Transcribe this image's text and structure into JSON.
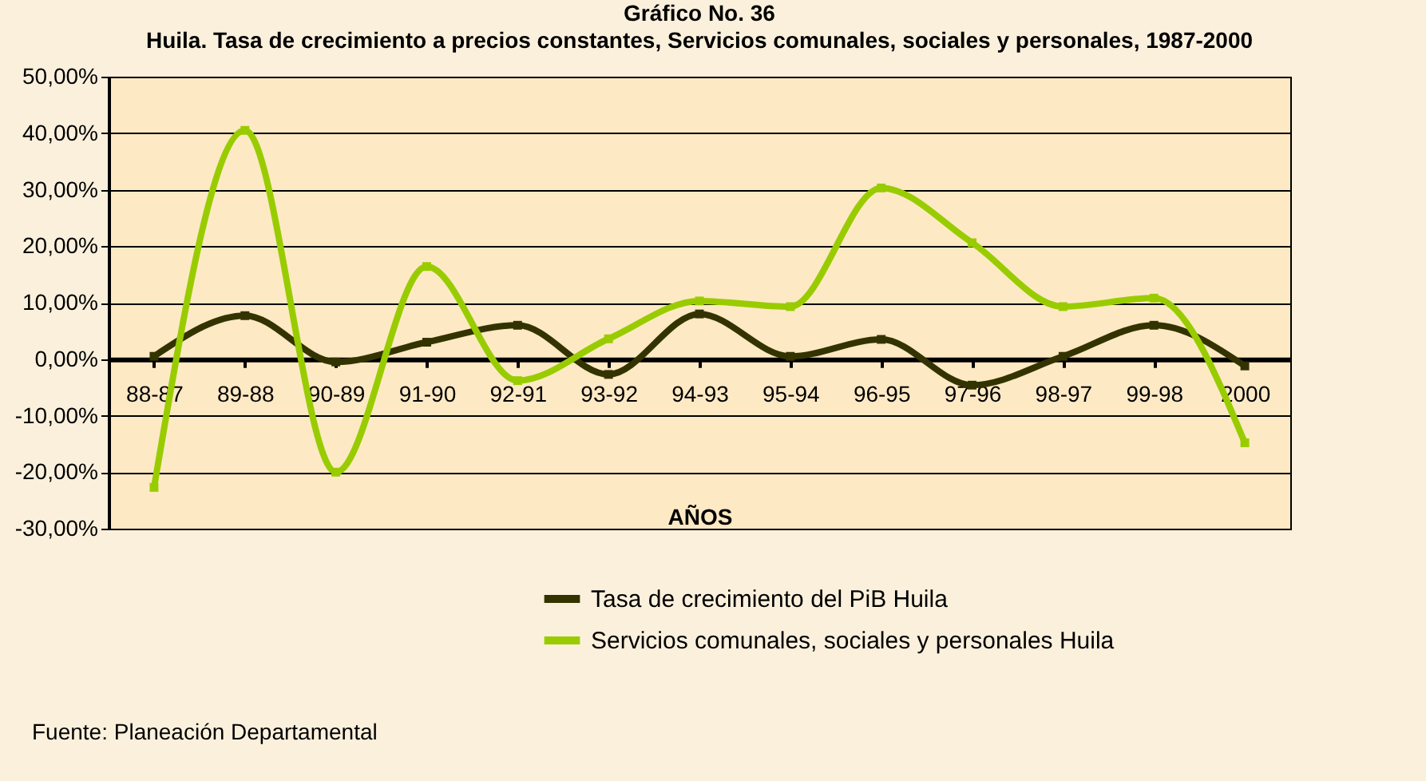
{
  "chart_data": {
    "type": "line",
    "title": "Gráfico No. 36",
    "subtitle": "Huila. Tasa de crecimiento a precios constantes, Servicios comunales, sociales y personales, 1987-2000",
    "xlabel": "AÑOS",
    "categories": [
      "88-87",
      "89-88",
      "90-89",
      "91-90",
      "92-91",
      "93-92",
      "94-93",
      "95-94",
      "96-95",
      "97-96",
      "98-97",
      "99-98",
      "2000"
    ],
    "series": [
      {
        "name": "Tasa de crecimiento del PiB Huila",
        "color": "#333300",
        "values": [
          0.5,
          7.7,
          -0.5,
          3,
          6,
          -2.7,
          8,
          0.5,
          3.5,
          -4.6,
          0.5,
          6,
          -1.2
        ]
      },
      {
        "name": "Servicios comunales, sociales y personales Huila",
        "color": "#99cc00",
        "values": [
          -22.7,
          40.5,
          -20,
          16.4,
          -3.8,
          3.6,
          10.3,
          9.3,
          30.3,
          20.6,
          9.3,
          10.8,
          -14.8
        ]
      }
    ],
    "ylim": [
      -30,
      50
    ],
    "yticks": [
      {
        "value": 50,
        "label": "50,00%"
      },
      {
        "value": 40,
        "label": "40,00%"
      },
      {
        "value": 30,
        "label": "30,00%"
      },
      {
        "value": 20,
        "label": "20,00%"
      },
      {
        "value": 10,
        "label": "10,00%"
      },
      {
        "value": 0,
        "label": "0,00%"
      },
      {
        "value": -10,
        "label": "-10,00%"
      },
      {
        "value": -20,
        "label": "-20,00%"
      },
      {
        "value": -30,
        "label": "-30,00%"
      }
    ],
    "grid": "y",
    "legend": "bottom right",
    "marker": "square",
    "line_style": "solid",
    "annotations": [
      "Fuente: Planeación Departamental"
    ]
  }
}
